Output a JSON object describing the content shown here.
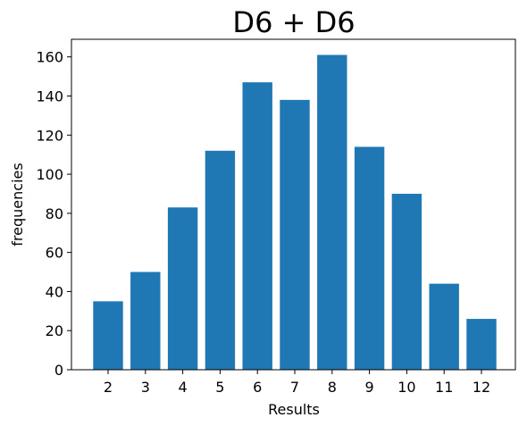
{
  "chart_data": {
    "type": "bar",
    "title": "D6 + D6",
    "xlabel": "Results",
    "ylabel": "frequencies",
    "categories": [
      "2",
      "3",
      "4",
      "5",
      "6",
      "7",
      "8",
      "9",
      "10",
      "11",
      "12"
    ],
    "values": [
      35,
      50,
      83,
      112,
      147,
      138,
      161,
      114,
      90,
      44,
      26
    ],
    "ylim": [
      0,
      169
    ],
    "yticks": [
      0,
      20,
      40,
      60,
      80,
      100,
      120,
      140,
      160
    ],
    "grid": false,
    "bar_color": "#1f77b4"
  }
}
